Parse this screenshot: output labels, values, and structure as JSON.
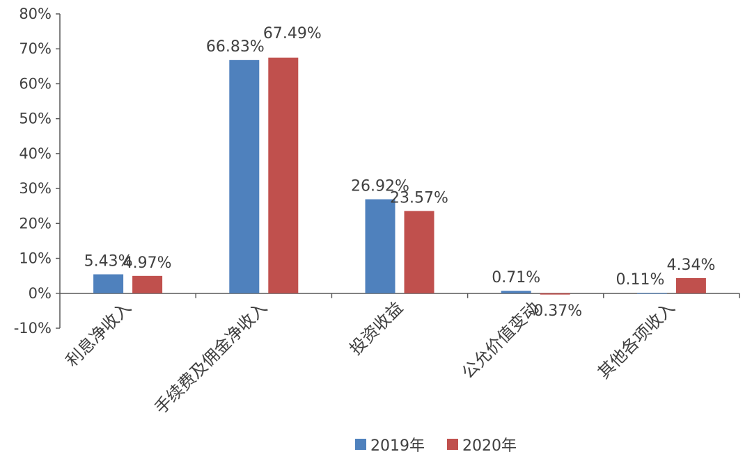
{
  "chart_data": {
    "type": "bar",
    "categories": [
      "利息净收入",
      "手续费及佣金净收入",
      "投资收益",
      "公允价值变动",
      "其他各项收入"
    ],
    "series": [
      {
        "name": "2019年",
        "color": "#4f81bd",
        "values": [
          5.43,
          66.83,
          26.92,
          0.71,
          0.11
        ],
        "labels": [
          "5.43%",
          "66.83%",
          "26.92%",
          "0.71%",
          "0.11%"
        ]
      },
      {
        "name": "2020年",
        "color": "#c0504d",
        "values": [
          4.97,
          67.49,
          23.57,
          -0.37,
          4.34
        ],
        "labels": [
          "4.97%",
          "67.49%",
          "23.57%",
          "-0.37%",
          "4.34%"
        ]
      }
    ],
    "yticks": [
      "80%",
      "70%",
      "60%",
      "50%",
      "40%",
      "30%",
      "20%",
      "10%",
      "0%",
      "-10%"
    ],
    "ylim": [
      -10,
      80
    ],
    "grid": false,
    "legend": "bottom"
  }
}
